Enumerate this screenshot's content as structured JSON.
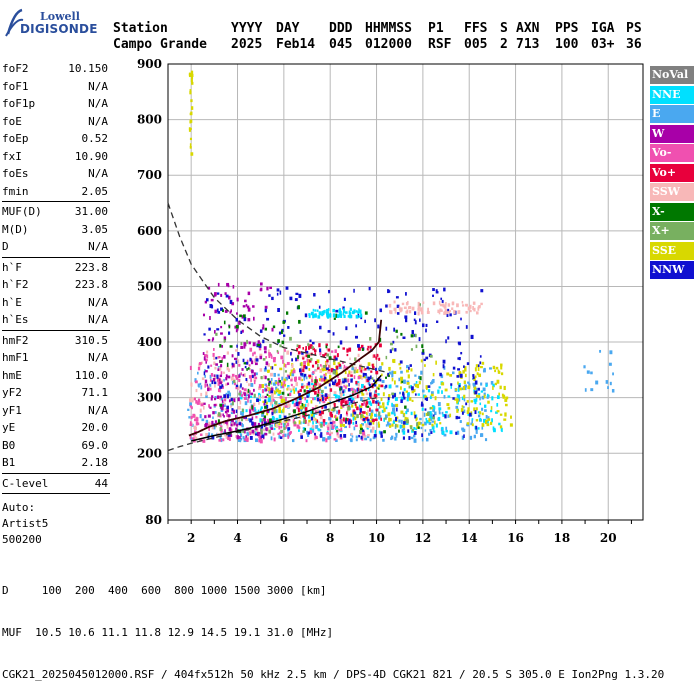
{
  "logo": {
    "brand_top": "Lowell",
    "brand_bottom": "DIGISONDE"
  },
  "header": {
    "station_label": "Station",
    "station_name": "Campo Grande",
    "cols": [
      {
        "label": "YYYY",
        "value": "2025"
      },
      {
        "label": "DAY",
        "value": "Feb14"
      },
      {
        "label": "DDD",
        "value": "045"
      },
      {
        "label": "HHMMSS",
        "value": "012000"
      },
      {
        "label": "P1",
        "value": "RSF"
      },
      {
        "label": "FFS",
        "value": "005"
      },
      {
        "label": "S",
        "value": "2"
      },
      {
        "label": "AXN",
        "value": "713"
      },
      {
        "label": "PPS",
        "value": "100"
      },
      {
        "label": "IGA",
        "value": "03+"
      },
      {
        "label": "PS",
        "value": "36"
      }
    ]
  },
  "params": {
    "group1": [
      {
        "label": "foF2",
        "value": "10.150"
      },
      {
        "label": "foF1",
        "value": "N/A"
      },
      {
        "label": "foF1p",
        "value": "N/A"
      },
      {
        "label": "foE",
        "value": "N/A"
      },
      {
        "label": "foEp",
        "value": "0.52"
      },
      {
        "label": "fxI",
        "value": "10.90"
      },
      {
        "label": "foEs",
        "value": "N/A"
      },
      {
        "label": "fmin",
        "value": "2.05"
      }
    ],
    "group2": [
      {
        "label": "MUF(D)",
        "value": "31.00"
      },
      {
        "label": "M(D)",
        "value": "3.05"
      },
      {
        "label": "D",
        "value": "N/A"
      }
    ],
    "group3": [
      {
        "label": "h`F",
        "value": "223.8"
      },
      {
        "label": "h`F2",
        "value": "223.8"
      },
      {
        "label": "h`E",
        "value": "N/A"
      },
      {
        "label": "h`Es",
        "value": "N/A"
      }
    ],
    "group4": [
      {
        "label": "hmF2",
        "value": "310.5"
      },
      {
        "label": "hmF1",
        "value": "N/A"
      },
      {
        "label": "hmE",
        "value": "110.0"
      },
      {
        "label": "yF2",
        "value": "71.1"
      },
      {
        "label": "yF1",
        "value": "N/A"
      },
      {
        "label": "yE",
        "value": "20.0"
      },
      {
        "label": "B0",
        "value": "69.0"
      },
      {
        "label": "B1",
        "value": "2.18"
      }
    ],
    "group5": [
      {
        "label": "C-level",
        "value": "44"
      }
    ],
    "auto_lines": [
      "Auto:",
      "Artist5",
      "500200"
    ]
  },
  "legend": [
    {
      "label": "NoVal",
      "color": "#808080",
      "text_color": "#ffffff"
    },
    {
      "label": "NNE",
      "color": "#00e0ff",
      "text_color": "#ffffff"
    },
    {
      "label": "E",
      "color": "#4aa8f0",
      "text_color": "#ffffff"
    },
    {
      "label": "W",
      "color": "#a800a8",
      "text_color": "#ffffff"
    },
    {
      "label": "Vo-",
      "color": "#f050b0",
      "text_color": "#ffffff"
    },
    {
      "label": "Vo+",
      "color": "#e8003c",
      "text_color": "#ffffff"
    },
    {
      "label": "SSW",
      "color": "#f8b8b8",
      "text_color": "#ffffff"
    },
    {
      "label": "X-",
      "color": "#007800",
      "text_color": "#ffffff"
    },
    {
      "label": "X+",
      "color": "#78b060",
      "text_color": "#ffffff"
    },
    {
      "label": "SSE",
      "color": "#d8d800",
      "text_color": "#ffffff"
    },
    {
      "label": "NNW",
      "color": "#1010d0",
      "text_color": "#ffffff"
    }
  ],
  "footer": {
    "line1": "D     100  200  400  600  800 1000 1500 3000 [km]",
    "line2": "MUF  10.5 10.6 11.1 11.8 12.9 14.5 19.1 31.0 [MHz]",
    "line3": "CGK21_2025045012000.RSF / 404fx512h 50 kHz 2.5 km / DPS-4D CGK21 821 / 20.5 S 305.0 E Ion2Png 1.3.20"
  },
  "chart_data": {
    "type": "scatter",
    "title": "",
    "xlabel": "",
    "ylabel": "",
    "xlim": [
      1.0,
      21.5
    ],
    "ylim": [
      80,
      900
    ],
    "x_ticks": [
      2,
      4,
      6,
      8,
      10,
      12,
      14,
      16,
      18,
      20
    ],
    "y_ticks": [
      80,
      200,
      300,
      400,
      500,
      600,
      700,
      800,
      900
    ],
    "grid": true,
    "legend_placement": "right",
    "clusters": [
      {
        "series": "E",
        "x0": 1.8,
        "x1": 15.0,
        "y0": 225,
        "y1": 360,
        "n": 380
      },
      {
        "series": "NNE",
        "x0": 4.0,
        "x1": 15.5,
        "y0": 240,
        "y1": 330,
        "n": 220
      },
      {
        "series": "SSE",
        "x0": 5.0,
        "x1": 15.8,
        "y0": 250,
        "y1": 370,
        "n": 300
      },
      {
        "series": "SSW",
        "x0": 1.9,
        "x1": 10.0,
        "y0": 230,
        "y1": 390,
        "n": 260
      },
      {
        "series": "Vo-",
        "x0": 1.9,
        "x1": 9.5,
        "y0": 225,
        "y1": 390,
        "n": 260
      },
      {
        "series": "Vo+",
        "x0": 6.5,
        "x1": 10.2,
        "y0": 260,
        "y1": 400,
        "n": 140
      },
      {
        "series": "W",
        "x0": 2.5,
        "x1": 5.5,
        "y0": 230,
        "y1": 510,
        "n": 180
      },
      {
        "series": "NNW",
        "x0": 2.5,
        "x1": 14.5,
        "y0": 230,
        "y1": 500,
        "n": 320
      },
      {
        "series": "X-",
        "x0": 3.0,
        "x1": 12.0,
        "y0": 240,
        "y1": 470,
        "n": 80
      },
      {
        "series": "X+",
        "x0": 3.0,
        "x1": 12.5,
        "y0": 240,
        "y1": 420,
        "n": 80
      },
      {
        "series": "NNE",
        "x0": 7.0,
        "x1": 9.3,
        "y0": 448,
        "y1": 462,
        "n": 60
      },
      {
        "series": "SSW",
        "x0": 10.5,
        "x1": 14.5,
        "y0": 455,
        "y1": 475,
        "n": 70
      },
      {
        "series": "SSE",
        "x0": 1.9,
        "x1": 2.0,
        "y0": 740,
        "y1": 900,
        "n": 25
      },
      {
        "series": "E",
        "x0": 18.5,
        "x1": 20.3,
        "y0": 315,
        "y1": 395,
        "n": 14
      }
    ],
    "profile_line": {
      "series": "profile",
      "x": [
        1.9,
        2.3,
        2.8,
        3.5,
        4.5,
        5.5,
        6.5,
        7.5,
        8.5,
        9.3,
        9.8,
        10.1,
        10.2
      ],
      "y": [
        232,
        238,
        248,
        258,
        268,
        280,
        298,
        318,
        345,
        370,
        385,
        400,
        440
      ]
    },
    "profile_line_2": {
      "series": "profile",
      "x": [
        2.0,
        3.0,
        4.0,
        5.0,
        6.0,
        7.0,
        8.0,
        9.0,
        9.8,
        10.2
      ],
      "y": [
        222,
        232,
        240,
        250,
        262,
        275,
        290,
        305,
        320,
        340
      ]
    },
    "muf_curve": {
      "series": "muf",
      "x": [
        1.0,
        1.5,
        2.0,
        3.0,
        4.0,
        5.0,
        6.0,
        7.0,
        8.0,
        9.0,
        10.0,
        10.5
      ],
      "y": [
        650,
        590,
        540,
        480,
        440,
        410,
        390,
        380,
        370,
        360,
        350,
        345
      ]
    },
    "lower_curve": {
      "series": "lower",
      "x": [
        1.0,
        1.5,
        2.0,
        3.0,
        4.0,
        5.0,
        6.0,
        7.0,
        8.0,
        9.0,
        10.0
      ],
      "y": [
        205,
        212,
        218,
        228,
        238,
        248,
        258,
        268,
        280,
        290,
        300
      ]
    }
  }
}
